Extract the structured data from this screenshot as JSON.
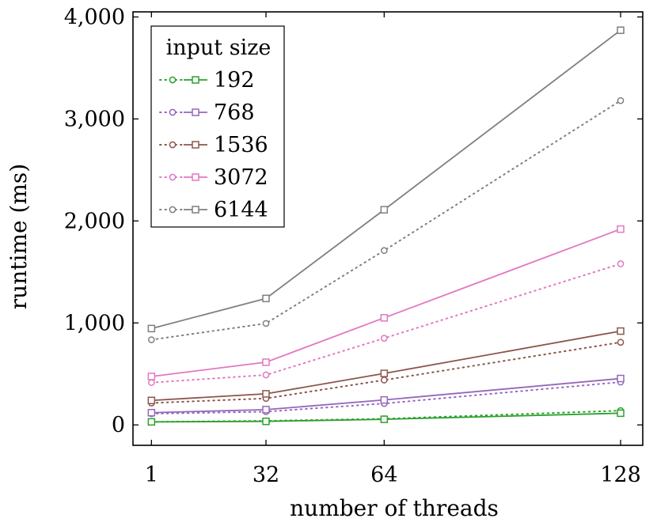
{
  "chart_data": {
    "type": "line",
    "xlabel": "number of threads",
    "ylabel": "runtime (ms)",
    "x_ticks": [
      1,
      32,
      64,
      128
    ],
    "x_tick_labels": [
      "1",
      "32",
      "64",
      "128"
    ],
    "y_ticks": [
      0,
      1000,
      2000,
      3000,
      4000
    ],
    "y_tick_labels": [
      "0",
      "1,000",
      "2,000",
      "3,000",
      "4,000"
    ],
    "xlim": [
      -4,
      134
    ],
    "ylim": [
      -200,
      4050
    ],
    "grid": false,
    "legend": {
      "title": "input size",
      "placement": "top-left"
    },
    "x": [
      1,
      32,
      64,
      128
    ],
    "series": [
      {
        "name": "192",
        "color": "#2ca02c",
        "dotted": [
          30,
          40,
          60,
          140
        ],
        "solid": [
          30,
          35,
          55,
          115
        ]
      },
      {
        "name": "768",
        "color": "#9467bd",
        "dotted": [
          110,
          130,
          210,
          420
        ],
        "solid": [
          120,
          150,
          245,
          455
        ]
      },
      {
        "name": "1536",
        "color": "#8c564b",
        "dotted": [
          215,
          260,
          440,
          810
        ],
        "solid": [
          240,
          305,
          505,
          920
        ]
      },
      {
        "name": "3072",
        "color": "#e377c2",
        "dotted": [
          415,
          490,
          850,
          1580
        ],
        "solid": [
          475,
          615,
          1050,
          1920
        ]
      },
      {
        "name": "6144",
        "color": "#7f7f7f",
        "dotted": [
          835,
          995,
          1710,
          3180
        ],
        "solid": [
          945,
          1240,
          2110,
          3870
        ]
      }
    ]
  }
}
